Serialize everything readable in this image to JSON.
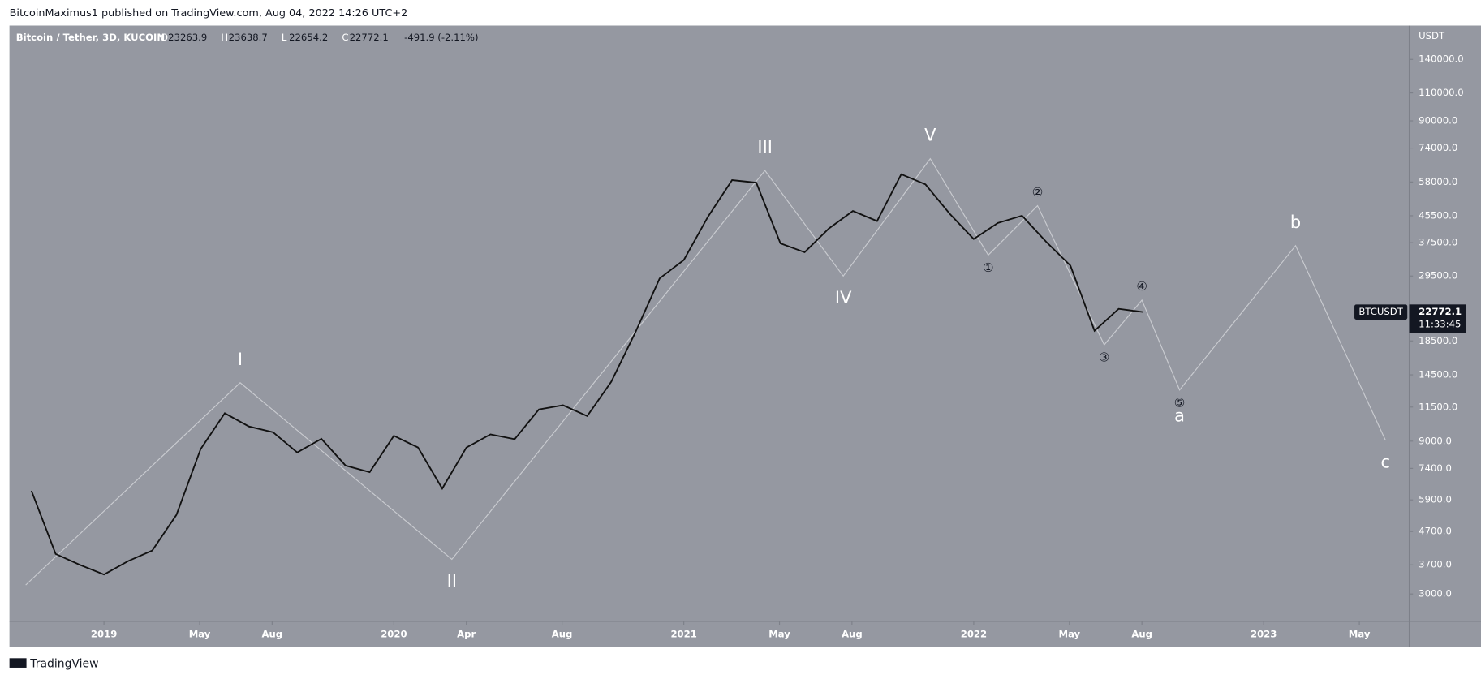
{
  "header": "BitcoinMaximus1 published on TradingView.com, Aug 04, 2022 14:26 UTC+2",
  "footer": "TradingView",
  "chart_data": {
    "type": "line",
    "title": "Bitcoin / Tether, 3D, KUCOIN",
    "ohlc": [
      {
        "label": "O",
        "value": 23263.9
      },
      {
        "label": "H",
        "value": 23638.7
      },
      {
        "label": "L",
        "value": 22654.2
      },
      {
        "label": "C",
        "value": 22772.1
      }
    ],
    "change": "-491.9 (-2.11%)",
    "currency": "USDT",
    "symbol": "BTCUSDT",
    "last_price": {
      "value": 22772.1,
      "label": "22772.1"
    },
    "countdown": "11:33:45",
    "log_scale": true,
    "x": [
      "2018-10",
      "2018-11",
      "2018-12",
      "2019-01",
      "2019-02",
      "2019-03",
      "2019-04",
      "2019-05",
      "2019-06",
      "2019-07",
      "2019-08",
      "2019-09",
      "2019-10",
      "2019-11",
      "2019-12",
      "2020-01",
      "2020-02",
      "2020-03",
      "2020-04",
      "2020-05",
      "2020-06",
      "2020-07",
      "2020-08",
      "2020-09",
      "2020-10",
      "2020-11",
      "2020-12",
      "2021-01",
      "2021-02",
      "2021-03",
      "2021-04",
      "2021-05",
      "2021-06",
      "2021-07",
      "2021-08",
      "2021-09",
      "2021-10",
      "2021-11",
      "2021-12",
      "2022-01",
      "2022-02",
      "2022-03",
      "2022-04",
      "2022-05",
      "2022-06",
      "2022-07",
      "2022-08"
    ],
    "series": [
      {
        "name": "BTCUSDT",
        "color": "#111111",
        "values": [
          6300,
          4000,
          3700,
          3450,
          3800,
          4100,
          5300,
          8500,
          11000,
          10000,
          9600,
          8300,
          9150,
          7550,
          7200,
          9350,
          8600,
          6400,
          8600,
          9450,
          9130,
          11300,
          11650,
          10780,
          13800,
          19700,
          29000,
          33100,
          45200,
          58800,
          57700,
          37300,
          35000,
          41500,
          47100,
          43800,
          61300,
          57000,
          46200,
          38500,
          43200,
          45500,
          37700,
          31800,
          19900,
          23300,
          22772.1
        ]
      }
    ],
    "wave_x": [
      2018.73,
      2019.47,
      2020.2,
      2021.28,
      2021.55,
      2021.85,
      2022.05,
      2022.22,
      2022.45,
      2022.58,
      2022.71,
      2023.11,
      2023.42
    ],
    "wave_y": [
      3200,
      13700,
      3850,
      63000,
      29500,
      68600,
      34300,
      48900,
      18000,
      24800,
      13000,
      36700,
      9070
    ],
    "wave_labels": [
      null,
      "I",
      "II",
      "III",
      "IV",
      "V",
      "①",
      "②",
      "③",
      "④",
      "⑤",
      "b",
      "c"
    ],
    "annotations": [
      {
        "text": "a",
        "x": 2022.71,
        "y": 13000
      }
    ],
    "wave_color": "#c9cbd0",
    "xlim": [
      2018.674,
      2023.502
    ],
    "xticks": [
      2019,
      {
        "value": 2019.33,
        "label": "May"
      },
      {
        "value": 2019.58,
        "label": "Aug"
      },
      2020,
      {
        "value": 2020.25,
        "label": "Apr"
      },
      {
        "value": 2020.58,
        "label": "Aug"
      },
      2021,
      {
        "value": 2021.33,
        "label": "May"
      },
      {
        "value": 2021.58,
        "label": "Aug"
      },
      2022,
      {
        "value": 2022.33,
        "label": "May"
      },
      {
        "value": 2022.58,
        "label": "Aug"
      },
      2023,
      {
        "value": 2023.33,
        "label": "May"
      }
    ],
    "ylim": [
      2464,
      178600
    ],
    "yticks": [
      {
        "value": 3000,
        "label": "3000.0"
      },
      {
        "value": 3700,
        "label": "3700.0"
      },
      {
        "value": 4700,
        "label": "4700.0"
      },
      {
        "value": 5900,
        "label": "5900.0"
      },
      {
        "value": 7400,
        "label": "7400.0"
      },
      {
        "value": 9000,
        "label": "9000.0"
      },
      {
        "value": 11500,
        "label": "11500.0"
      },
      {
        "value": 14500,
        "label": "14500.0"
      },
      {
        "value": 18500,
        "label": "18500.0"
      },
      {
        "value": 29500,
        "label": "29500.0"
      },
      {
        "value": 37500,
        "label": "37500.0"
      },
      {
        "value": 45500,
        "label": "45500.0"
      },
      {
        "value": 58000,
        "label": "58000.0"
      },
      {
        "value": 74000,
        "label": "74000.0"
      },
      {
        "value": 90000,
        "label": "90000.0"
      },
      {
        "value": 110000,
        "label": "110000.0"
      },
      {
        "value": 140000,
        "label": "140000.0"
      }
    ]
  }
}
